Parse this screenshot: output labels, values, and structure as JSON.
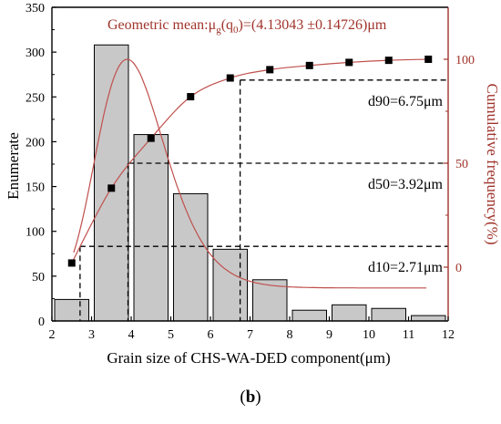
{
  "chart_data": {
    "type": "bar",
    "xlabel": "Grain size of CHS-WA-DED component(μm)",
    "ylabel_left": "Enumerate",
    "ylabel_right": "Cumulative frequency(%)",
    "x_range": [
      2,
      12
    ],
    "x_ticks": [
      2,
      3,
      4,
      5,
      6,
      7,
      8,
      9,
      10,
      11,
      12
    ],
    "y_left_range": [
      0,
      350
    ],
    "y_left_ticks": [
      0,
      50,
      100,
      150,
      200,
      250,
      300,
      350
    ],
    "y_right_ticks": [
      0,
      50,
      100
    ],
    "bars": {
      "bin_centers": [
        2.5,
        3.5,
        4.5,
        5.5,
        6.5,
        7.5,
        8.5,
        9.5,
        10.5,
        11.5
      ],
      "counts": [
        24,
        308,
        208,
        142,
        80,
        46,
        12,
        18,
        14,
        6
      ]
    },
    "cumulative_points": {
      "x": [
        2.5,
        3.5,
        4.5,
        5.5,
        6.5,
        7.5,
        8.5,
        9.5,
        10.5,
        11.5
      ],
      "y_percent": [
        2,
        38,
        62,
        82,
        91,
        95,
        97,
        98.5,
        99.5,
        100
      ]
    },
    "markers": [
      {
        "label": "d10=2.71μm",
        "x": 2.71,
        "percent": 10
      },
      {
        "label": "d50=3.92μm",
        "x": 3.92,
        "percent": 50
      },
      {
        "label": "d90=6.75μm",
        "x": 6.75,
        "percent": 90
      }
    ],
    "annotation": {
      "prefix": "Geometric mean:μ",
      "sub1": "g",
      "mid": "(q",
      "sub2": "0",
      "suffix": ")=(4.13043 ±0.14726)μm"
    },
    "fit_peak_x": 3.9,
    "fit_peak_percent": 100,
    "colors": {
      "bar_fill": "#c8c8c8",
      "curve": "#c0504d",
      "right_axis": "#a0342c",
      "points": "#000000"
    }
  },
  "caption": {
    "label": "b"
  }
}
